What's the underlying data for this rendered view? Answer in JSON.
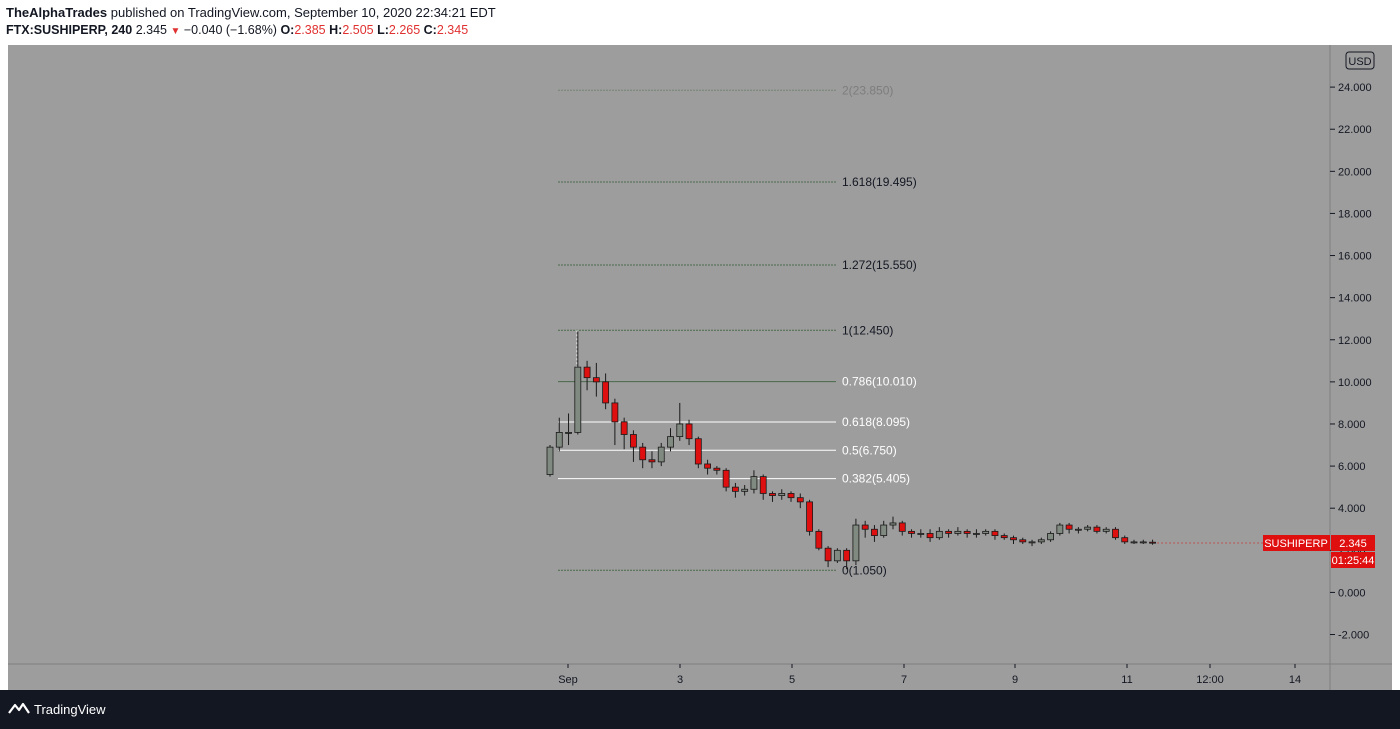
{
  "header": {
    "publisher": "TheAlphaTrades",
    "published_line": "published on TradingView.com, September 10, 2020 22:34:21 EDT",
    "symbol": "FTX:SUSHIPERP, 240",
    "price": "2.345",
    "change": "−0.040 (−1.68%)",
    "o_label": "O:",
    "o_value": "2.385",
    "h_label": "H:",
    "h_value": "2.505",
    "l_label": "L:",
    "l_value": "2.265",
    "c_label": "C:",
    "c_value": "2.345"
  },
  "footer": {
    "brand": "TradingView"
  },
  "chart_data": {
    "type": "candlestick",
    "currency": "USD",
    "y_ticks": [
      "24.000",
      "22.000",
      "20.000",
      "18.000",
      "16.000",
      "14.000",
      "12.000",
      "10.000",
      "8.000",
      "6.000",
      "4.000",
      "2.000",
      "0.000",
      "-2.000"
    ],
    "x_ticks": [
      "Sep",
      "3",
      "5",
      "7",
      "9",
      "11",
      "12:00",
      "14"
    ],
    "ylim": [
      -3.4,
      26
    ],
    "fib_levels": [
      {
        "label": "2(23.850)",
        "value": 23.85
      },
      {
        "label": "1.618(19.495)",
        "value": 19.495
      },
      {
        "label": "1.272(15.550)",
        "value": 15.55
      },
      {
        "label": "1(12.450)",
        "value": 12.45
      },
      {
        "label": "0.786(10.010)",
        "value": 10.01
      },
      {
        "label": "0.618(8.095)",
        "value": 8.095
      },
      {
        "label": "0.5(6.750)",
        "value": 6.75
      },
      {
        "label": "0.382(5.405)",
        "value": 5.405
      },
      {
        "label": "0(1.050)",
        "value": 1.05
      }
    ],
    "last_price": {
      "symbol": "SUSHIPERP",
      "price": "2.345",
      "countdown": "01:25:44"
    },
    "candles": [
      [
        5.6,
        6.9,
        5.5,
        7.0
      ],
      [
        6.9,
        7.6,
        6.7,
        8.3
      ],
      [
        7.6,
        7.6,
        7.0,
        8.5
      ],
      [
        7.6,
        10.7,
        7.5,
        12.4
      ],
      [
        10.7,
        10.2,
        9.6,
        11.0
      ],
      [
        10.2,
        10.0,
        9.3,
        10.9
      ],
      [
        10.0,
        9.0,
        8.7,
        10.4
      ],
      [
        9.0,
        8.1,
        7.0,
        9.2
      ],
      [
        8.1,
        7.5,
        6.8,
        8.3
      ],
      [
        7.5,
        6.9,
        6.2,
        7.7
      ],
      [
        6.9,
        6.3,
        5.9,
        7.1
      ],
      [
        6.3,
        6.2,
        5.9,
        6.7
      ],
      [
        6.2,
        6.9,
        6.0,
        7.1
      ],
      [
        6.9,
        7.4,
        6.7,
        7.8
      ],
      [
        7.4,
        8.0,
        7.2,
        9.0
      ],
      [
        8.0,
        7.3,
        7.0,
        8.2
      ],
      [
        7.3,
        6.1,
        5.9,
        7.4
      ],
      [
        6.1,
        5.9,
        5.6,
        6.3
      ],
      [
        5.9,
        5.8,
        5.6,
        6.0
      ],
      [
        5.8,
        5.0,
        4.8,
        5.9
      ],
      [
        5.0,
        4.8,
        4.5,
        5.2
      ],
      [
        4.8,
        4.9,
        4.6,
        5.1
      ],
      [
        4.9,
        5.5,
        4.7,
        5.8
      ],
      [
        5.5,
        4.7,
        4.4,
        5.6
      ],
      [
        4.7,
        4.6,
        4.3,
        4.8
      ],
      [
        4.6,
        4.7,
        4.4,
        4.9
      ],
      [
        4.7,
        4.5,
        4.3,
        4.8
      ],
      [
        4.5,
        4.3,
        4.0,
        4.7
      ],
      [
        4.3,
        2.9,
        2.7,
        4.4
      ],
      [
        2.9,
        2.1,
        2.0,
        3.0
      ],
      [
        2.1,
        1.5,
        1.2,
        2.2
      ],
      [
        1.5,
        2.0,
        1.4,
        2.1
      ],
      [
        2.0,
        1.5,
        1.1,
        2.1
      ],
      [
        1.5,
        3.2,
        1.3,
        3.5
      ],
      [
        3.2,
        3.0,
        2.6,
        3.4
      ],
      [
        3.0,
        2.7,
        2.4,
        3.2
      ],
      [
        2.7,
        3.2,
        2.6,
        3.4
      ],
      [
        3.2,
        3.3,
        3.0,
        3.6
      ],
      [
        3.3,
        2.9,
        2.7,
        3.4
      ],
      [
        2.9,
        2.8,
        2.6,
        3.0
      ],
      [
        2.8,
        2.8,
        2.6,
        3.0
      ],
      [
        2.8,
        2.6,
        2.4,
        3.0
      ],
      [
        2.6,
        2.9,
        2.5,
        3.1
      ],
      [
        2.9,
        2.8,
        2.6,
        3.0
      ],
      [
        2.8,
        2.9,
        2.7,
        3.1
      ],
      [
        2.9,
        2.8,
        2.6,
        3.0
      ],
      [
        2.8,
        2.8,
        2.6,
        3.0
      ],
      [
        2.8,
        2.9,
        2.7,
        3.0
      ],
      [
        2.9,
        2.7,
        2.5,
        3.0
      ],
      [
        2.7,
        2.6,
        2.5,
        2.8
      ],
      [
        2.6,
        2.5,
        2.3,
        2.7
      ],
      [
        2.5,
        2.4,
        2.3,
        2.6
      ],
      [
        2.4,
        2.4,
        2.2,
        2.5
      ],
      [
        2.4,
        2.5,
        2.3,
        2.6
      ],
      [
        2.5,
        2.8,
        2.4,
        2.9
      ],
      [
        2.8,
        3.2,
        2.7,
        3.3
      ],
      [
        3.2,
        3.0,
        2.8,
        3.3
      ],
      [
        3.0,
        3.0,
        2.8,
        3.1
      ],
      [
        3.0,
        3.1,
        2.9,
        3.2
      ],
      [
        3.1,
        2.9,
        2.8,
        3.2
      ],
      [
        2.9,
        3.0,
        2.8,
        3.1
      ],
      [
        3.0,
        2.6,
        2.5,
        3.1
      ],
      [
        2.6,
        2.4,
        2.3,
        2.7
      ],
      [
        2.4,
        2.4,
        2.3,
        2.5
      ],
      [
        2.4,
        2.4,
        2.3,
        2.5
      ],
      [
        2.385,
        2.345,
        2.265,
        2.505
      ]
    ]
  }
}
